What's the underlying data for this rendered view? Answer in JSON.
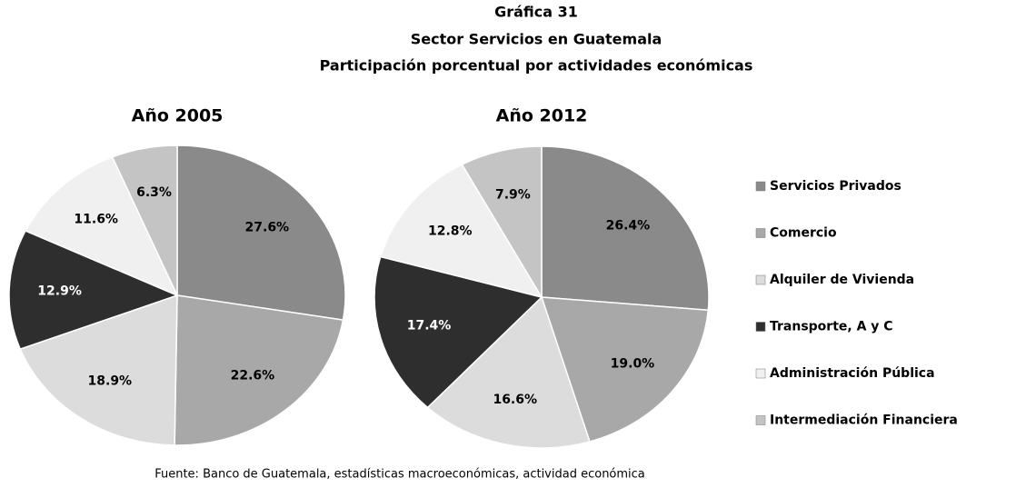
{
  "title": "Gráfica 31",
  "subtitle": [
    "Sector Servicios en Guatemala",
    "Participación porcentual por actividades económicas"
  ],
  "legend": {
    "categories": [
      "Servicios Privados",
      "Comercio",
      "Alquiler de Vivienda",
      "Transporte, A y C",
      "Administración Pública",
      "Intermediación Financiera"
    ],
    "colors": [
      "#8a8a8a",
      "#a8a8a8",
      "#dcdcdc",
      "#2e2e2e",
      "#f0f0f0",
      "#c4c4c4"
    ]
  },
  "chart_data": [
    {
      "type": "pie",
      "title": "Año 2005",
      "values": [
        27.6,
        22.6,
        18.9,
        12.9,
        11.6,
        6.3
      ],
      "value_labels": [
        "27.6%",
        "22.6%",
        "18.9%",
        "12.9%",
        "11.6%",
        "6.3%"
      ]
    },
    {
      "type": "pie",
      "title": "Año 2012",
      "values": [
        26.4,
        19.0,
        16.6,
        17.4,
        12.8,
        7.9
      ],
      "value_labels": [
        "26.4%",
        "19.0%",
        "16.6%",
        "17.4%",
        "12.8%",
        "7.9%"
      ]
    }
  ],
  "source": "Fuente: Banco de Guatemala, estadísticas macroeconómicas, actividad económica"
}
